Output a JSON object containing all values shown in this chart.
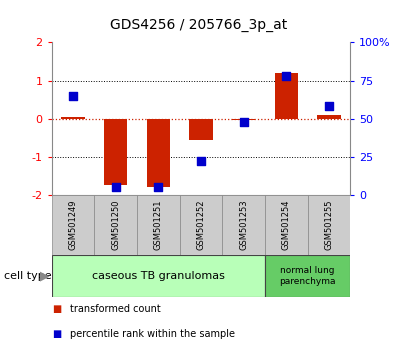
{
  "title": "GDS4256 / 205766_3p_at",
  "samples": [
    "GSM501249",
    "GSM501250",
    "GSM501251",
    "GSM501252",
    "GSM501253",
    "GSM501254",
    "GSM501255"
  ],
  "transformed_count": [
    0.05,
    -1.75,
    -1.8,
    -0.55,
    -0.05,
    1.2,
    0.1
  ],
  "percentile_rank": [
    65,
    5,
    5,
    22,
    48,
    78,
    58
  ],
  "ylim": [
    -2,
    2
  ],
  "y2lim": [
    0,
    100
  ],
  "yticks": [
    -2,
    -1,
    0,
    1,
    2
  ],
  "y2ticks": [
    0,
    25,
    50,
    75,
    100
  ],
  "y2ticklabels": [
    "0",
    "25",
    "50",
    "75",
    "100%"
  ],
  "bar_color": "#cc2200",
  "dot_color": "#0000cc",
  "zero_line_color": "#cc2200",
  "hline_color": "#000000",
  "cell_type_groups": [
    {
      "label": "caseous TB granulomas",
      "indices": [
        0,
        1,
        2,
        3,
        4
      ],
      "color": "#b8ffb8"
    },
    {
      "label": "normal lung\nparenchyma",
      "indices": [
        5,
        6
      ],
      "color": "#66cc66"
    }
  ],
  "legend_items": [
    {
      "label": "transformed count",
      "color": "#cc2200"
    },
    {
      "label": "percentile rank within the sample",
      "color": "#0000cc"
    }
  ],
  "cell_type_label": "cell type",
  "bar_width": 0.55,
  "dot_size": 40,
  "label_box_color": "#cccccc",
  "label_box_edge": "#888888"
}
